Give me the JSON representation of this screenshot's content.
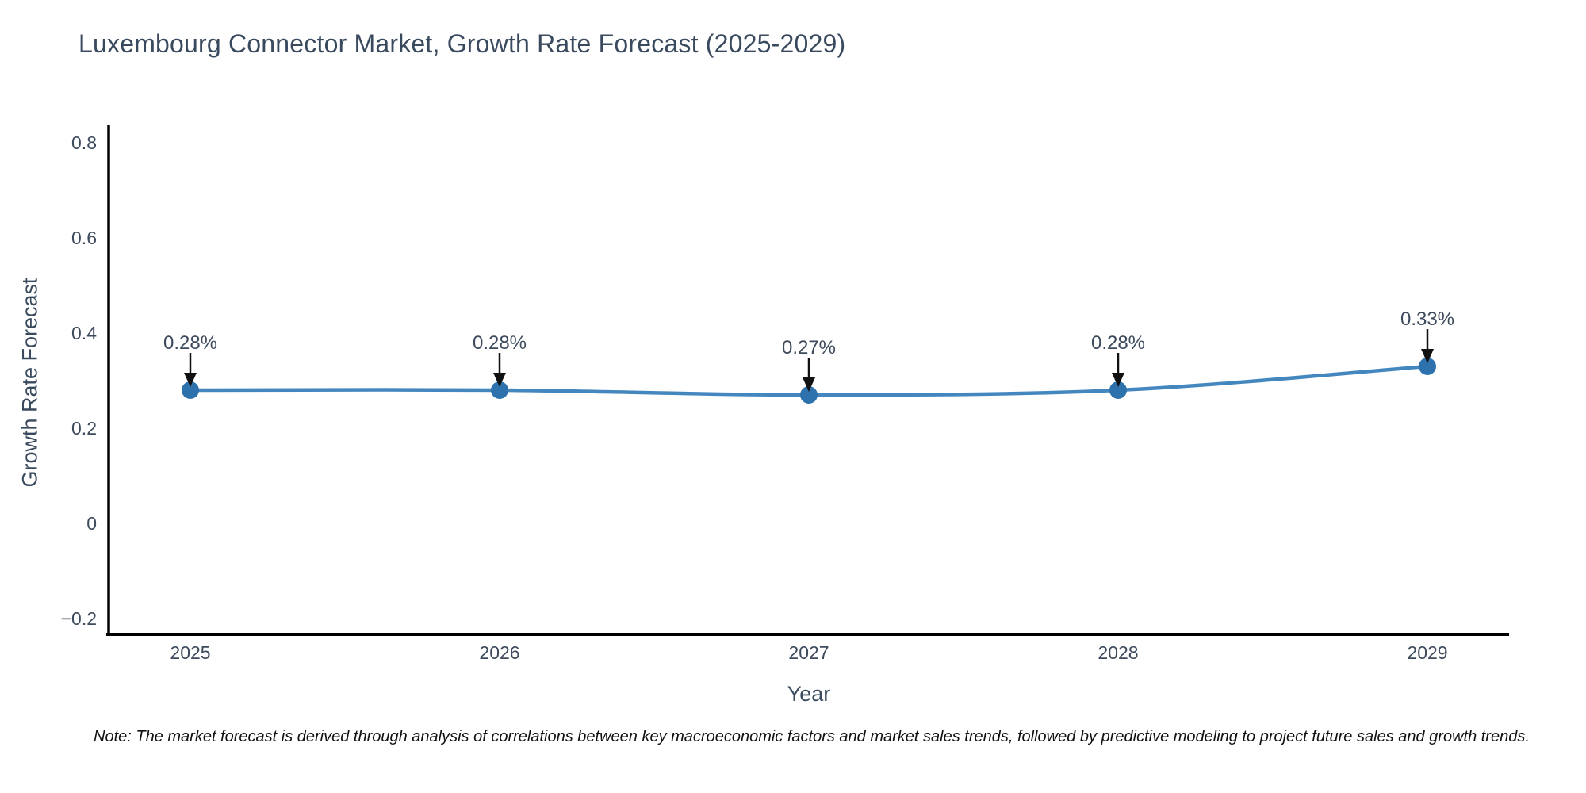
{
  "note": "Note: The market forecast is derived through analysis of correlations between key macroeconomic factors and market sales trends, followed by predictive modeling to project future sales and growth trends.",
  "chart_data": {
    "type": "line",
    "title": "Luxembourg Connector Market, Growth Rate Forecast (2025-2029)",
    "xlabel": "Year",
    "ylabel": "Growth Rate Forecast",
    "categories": [
      "2025",
      "2026",
      "2027",
      "2028",
      "2029"
    ],
    "series": [
      {
        "name": "Growth Rate Forecast",
        "values": [
          0.28,
          0.28,
          0.27,
          0.28,
          0.33
        ]
      }
    ],
    "point_labels": [
      "0.28%",
      "0.28%",
      "0.27%",
      "0.28%",
      "0.33%"
    ],
    "yticks": {
      "values": [
        0.8,
        0.6,
        0.4,
        0.2,
        0,
        -0.2
      ],
      "labels": [
        "0.8",
        "0.6",
        "0.4",
        "0.2",
        "0",
        "−0.2"
      ]
    },
    "ylim": [
      -0.233,
      0.833
    ],
    "grid": false,
    "legend_position": "none",
    "annotation_arrows": true,
    "colors": {
      "line": "#4487bf",
      "marker": "#2e72ad",
      "arrow": "#111111",
      "axis": "#000000",
      "tick_text": "#3d4a5c",
      "title_text": "#3a4a5e",
      "background": "#ffffff"
    }
  }
}
